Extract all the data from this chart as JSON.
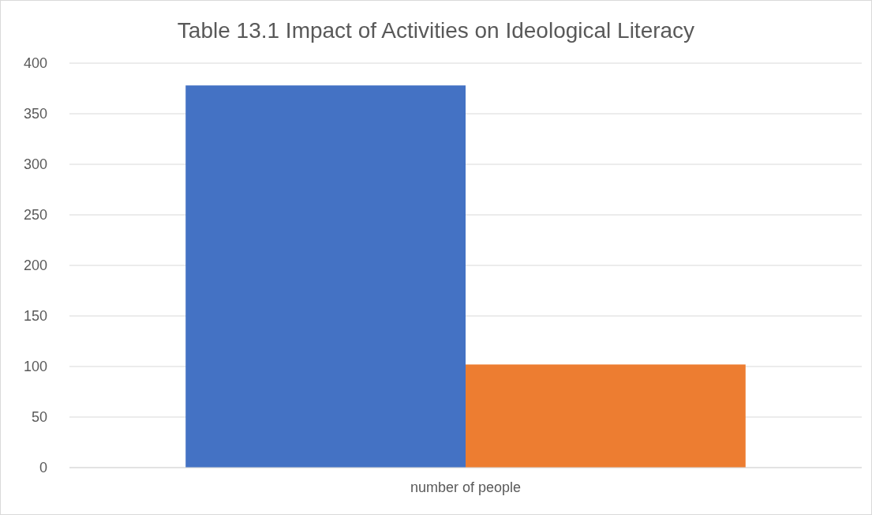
{
  "chart_data": {
    "type": "bar",
    "title": "Table 13.1 Impact of Activities on Ideological Literacy",
    "categories": [
      "number of people"
    ],
    "series": [
      {
        "color": "#4472c4",
        "values": [
          378
        ]
      },
      {
        "color": "#ed7d31",
        "values": [
          102
        ]
      }
    ],
    "ylim": [
      0,
      400
    ],
    "yticks": [
      0,
      50,
      100,
      150,
      200,
      250,
      300,
      350,
      400
    ],
    "grid": "y"
  }
}
